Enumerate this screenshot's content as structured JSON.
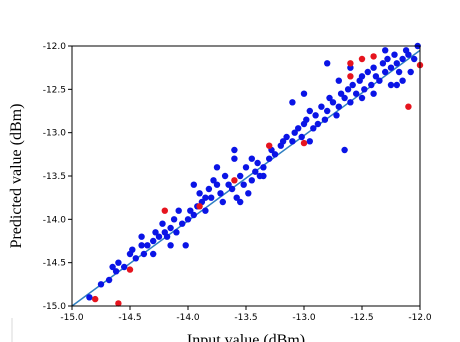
{
  "chart_data": {
    "type": "scatter",
    "title": "",
    "xlabel": "Input value (dBm)",
    "ylabel": "Predicted value (dBm)",
    "xlim": [
      -15.0,
      -12.0
    ],
    "ylim": [
      -15.0,
      -12.0
    ],
    "xticks": [
      "-15.0",
      "-14.5",
      "-14.0",
      "-13.5",
      "-13.0",
      "-12.5",
      "-12.0"
    ],
    "yticks": [
      "-15.0",
      "-14.5",
      "-14.0",
      "-13.5",
      "-13.0",
      "-12.5",
      "-12.0"
    ],
    "grid": false,
    "colors": {
      "blue_points": "#0a14e6",
      "red_points": "#e6141e",
      "fit_line": "#2f7fc1"
    },
    "fit_line": {
      "x": [
        -15.0,
        -12.0
      ],
      "y": [
        -15.0,
        -12.05
      ]
    },
    "series": [
      {
        "color": "#0a14e6",
        "points": [
          [
            -14.85,
            -14.9
          ],
          [
            -14.75,
            -14.75
          ],
          [
            -14.68,
            -14.7
          ],
          [
            -14.62,
            -14.6
          ],
          [
            -14.6,
            -14.5
          ],
          [
            -14.55,
            -14.55
          ],
          [
            -14.5,
            -14.4
          ],
          [
            -14.48,
            -14.35
          ],
          [
            -14.45,
            -14.45
          ],
          [
            -14.4,
            -14.3
          ],
          [
            -14.38,
            -14.4
          ],
          [
            -14.35,
            -14.3
          ],
          [
            -14.3,
            -14.25
          ],
          [
            -14.28,
            -14.15
          ],
          [
            -14.25,
            -14.2
          ],
          [
            -14.22,
            -14.05
          ],
          [
            -14.2,
            -14.15
          ],
          [
            -14.18,
            -14.2
          ],
          [
            -14.15,
            -14.1
          ],
          [
            -14.12,
            -14.0
          ],
          [
            -14.1,
            -14.15
          ],
          [
            -14.08,
            -13.9
          ],
          [
            -14.05,
            -14.05
          ],
          [
            -14.02,
            -14.3
          ],
          [
            -14.0,
            -14.0
          ],
          [
            -13.98,
            -13.9
          ],
          [
            -13.95,
            -13.95
          ],
          [
            -13.92,
            -13.85
          ],
          [
            -13.9,
            -13.7
          ],
          [
            -13.88,
            -13.8
          ],
          [
            -13.85,
            -13.75
          ],
          [
            -13.82,
            -13.65
          ],
          [
            -13.8,
            -13.75
          ],
          [
            -13.78,
            -13.55
          ],
          [
            -13.75,
            -13.6
          ],
          [
            -13.72,
            -13.7
          ],
          [
            -13.7,
            -13.8
          ],
          [
            -13.68,
            -13.5
          ],
          [
            -13.65,
            -13.6
          ],
          [
            -13.62,
            -13.65
          ],
          [
            -13.6,
            -13.2
          ],
          [
            -13.6,
            -13.3
          ],
          [
            -13.58,
            -13.75
          ],
          [
            -13.55,
            -13.5
          ],
          [
            -13.52,
            -13.6
          ],
          [
            -13.5,
            -13.4
          ],
          [
            -13.48,
            -13.7
          ],
          [
            -13.45,
            -13.55
          ],
          [
            -13.42,
            -13.45
          ],
          [
            -13.4,
            -13.35
          ],
          [
            -13.38,
            -13.5
          ],
          [
            -13.35,
            -13.4
          ],
          [
            -13.3,
            -13.3
          ],
          [
            -13.28,
            -13.2
          ],
          [
            -13.25,
            -13.25
          ],
          [
            -13.2,
            -13.15
          ],
          [
            -13.18,
            -13.1
          ],
          [
            -13.15,
            -13.05
          ],
          [
            -13.1,
            -13.1
          ],
          [
            -13.08,
            -13.0
          ],
          [
            -13.05,
            -12.95
          ],
          [
            -13.02,
            -13.05
          ],
          [
            -13.0,
            -12.9
          ],
          [
            -12.98,
            -12.85
          ],
          [
            -12.95,
            -12.75
          ],
          [
            -12.92,
            -12.95
          ],
          [
            -12.9,
            -12.8
          ],
          [
            -12.88,
            -12.9
          ],
          [
            -12.85,
            -12.7
          ],
          [
            -12.82,
            -12.85
          ],
          [
            -12.8,
            -12.75
          ],
          [
            -12.78,
            -12.6
          ],
          [
            -12.75,
            -12.65
          ],
          [
            -12.72,
            -12.8
          ],
          [
            -12.7,
            -12.7
          ],
          [
            -12.68,
            -12.55
          ],
          [
            -12.65,
            -12.6
          ],
          [
            -12.62,
            -12.5
          ],
          [
            -12.6,
            -12.65
          ],
          [
            -12.58,
            -12.45
          ],
          [
            -12.55,
            -12.55
          ],
          [
            -12.52,
            -12.4
          ],
          [
            -12.5,
            -12.35
          ],
          [
            -12.48,
            -12.5
          ],
          [
            -12.45,
            -12.3
          ],
          [
            -12.42,
            -12.45
          ],
          [
            -12.4,
            -12.25
          ],
          [
            -12.38,
            -12.35
          ],
          [
            -12.35,
            -12.4
          ],
          [
            -12.32,
            -12.2
          ],
          [
            -12.3,
            -12.3
          ],
          [
            -12.28,
            -12.15
          ],
          [
            -12.25,
            -12.25
          ],
          [
            -12.22,
            -12.1
          ],
          [
            -12.2,
            -12.2
          ],
          [
            -12.18,
            -12.3
          ],
          [
            -12.15,
            -12.15
          ],
          [
            -12.12,
            -12.05
          ],
          [
            -12.1,
            -12.1
          ],
          [
            -12.05,
            -12.15
          ],
          [
            -12.02,
            -12.0
          ],
          [
            -13.1,
            -12.65
          ],
          [
            -12.8,
            -12.2
          ],
          [
            -12.7,
            -12.4
          ],
          [
            -12.65,
            -13.2
          ],
          [
            -12.3,
            -12.05
          ],
          [
            -12.25,
            -12.45
          ],
          [
            -13.0,
            -12.55
          ],
          [
            -14.4,
            -14.2
          ],
          [
            -14.15,
            -14.3
          ],
          [
            -13.95,
            -13.6
          ],
          [
            -13.85,
            -13.9
          ],
          [
            -13.55,
            -13.8
          ],
          [
            -13.35,
            -13.5
          ],
          [
            -12.6,
            -12.25
          ],
          [
            -12.4,
            -12.55
          ],
          [
            -12.15,
            -12.4
          ],
          [
            -12.08,
            -12.3
          ],
          [
            -14.65,
            -14.55
          ],
          [
            -14.3,
            -14.4
          ],
          [
            -13.75,
            -13.4
          ],
          [
            -13.45,
            -13.3
          ],
          [
            -12.95,
            -13.1
          ],
          [
            -12.5,
            -12.6
          ],
          [
            -12.2,
            -12.45
          ]
        ]
      },
      {
        "color": "#e6141e",
        "points": [
          [
            -14.8,
            -14.92
          ],
          [
            -14.6,
            -14.97
          ],
          [
            -14.5,
            -14.58
          ],
          [
            -14.2,
            -13.9
          ],
          [
            -13.9,
            -13.85
          ],
          [
            -13.6,
            -13.55
          ],
          [
            -13.3,
            -13.15
          ],
          [
            -13.0,
            -13.12
          ],
          [
            -12.6,
            -12.2
          ],
          [
            -12.6,
            -12.35
          ],
          [
            -12.5,
            -12.15
          ],
          [
            -12.4,
            -12.12
          ],
          [
            -12.1,
            -12.7
          ],
          [
            -12.0,
            -12.22
          ]
        ]
      }
    ]
  }
}
